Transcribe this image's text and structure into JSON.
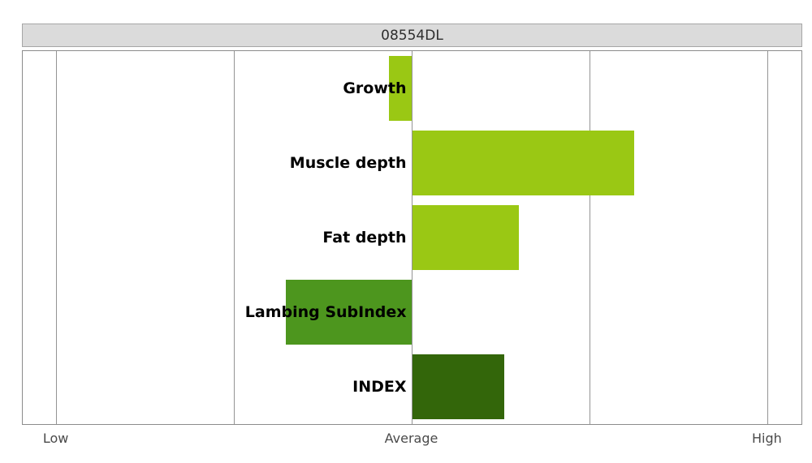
{
  "title": "08554DL",
  "chart_data": {
    "type": "bar",
    "orientation": "horizontal",
    "title": "08554DL",
    "baseline": 3,
    "xlim": [
      0.81,
      5.19
    ],
    "gridlines": [
      1,
      2,
      3,
      4,
      5
    ],
    "axis_ticks": [
      {
        "value": 1,
        "label": "Low"
      },
      {
        "value": 3,
        "label": "Average"
      },
      {
        "value": 5,
        "label": "High"
      }
    ],
    "categories": [
      "Growth",
      "Muscle depth",
      "Fat depth",
      "Lambing SubIndex",
      "INDEX"
    ],
    "values": [
      2.87,
      4.25,
      3.6,
      2.29,
      3.52
    ],
    "bar_colors": [
      "#9AC814",
      "#9AC814",
      "#9AC814",
      "#4D961E",
      "#33660A"
    ],
    "legend": "none",
    "grid": "vertical-only",
    "colors": {
      "light_green": "#9AC814",
      "medium_green": "#4D961E",
      "dark_green": "#33660A",
      "gridline": "#949494",
      "plot_border": "#8C8C8C",
      "title_bg": "#DBDBDB",
      "title_border": "#A6A6A6",
      "title_text": "#2e2e2e",
      "axis_text": "#4a4a4a",
      "bar_label_text": "#000000"
    }
  }
}
